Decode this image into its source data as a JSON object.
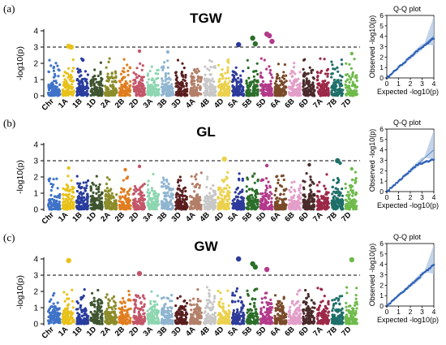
{
  "figure": {
    "panels": [
      {
        "tag": "(a)",
        "trait": "TGW",
        "ylabel": "-log10(p)",
        "qq_title": "Q-Q plot"
      },
      {
        "tag": "(b)",
        "trait": "GL",
        "ylabel": "-log10(p)",
        "qq_title": "Q-Q plot"
      },
      {
        "tag": "(c)",
        "trait": "GW",
        "ylabel": "-log10(p)",
        "qq_title": "Q-Q plot"
      }
    ]
  },
  "chart_data": [
    {
      "type": "scatter",
      "title": "TGW",
      "ylabel": "-log10(p)",
      "ylim": [
        0,
        4
      ],
      "yticks": [
        0,
        1,
        2,
        3,
        4
      ],
      "threshold": 3,
      "chromosomes": [
        "Chr",
        "1A",
        "1B",
        "1D",
        "2A",
        "2B",
        "2D",
        "3A",
        "3B",
        "3D",
        "4A",
        "4B",
        "4D",
        "5A",
        "5B",
        "5D",
        "6A",
        "6B",
        "6D",
        "7A",
        "7B",
        "7D"
      ],
      "chrom_colors": [
        "#3f73c9",
        "#e8c21a",
        "#283d9e",
        "#3e5530",
        "#8c8c2a",
        "#e07d1e",
        "#c4566a",
        "#8dd6b0",
        "#8fb5d0",
        "#5a1e1e",
        "#b37f68",
        "#c8c8c8",
        "#ebd14c",
        "#2d3a9c",
        "#2c6f2a",
        "#b33a8a",
        "#7a4a2a",
        "#e39ec9",
        "#4a2a2a",
        "#9c2848",
        "#1f6f6a",
        "#6fba4b"
      ],
      "top_points": [
        {
          "chr": "1A",
          "value": 3.05
        },
        {
          "chr": "1A",
          "value": 3.0
        },
        {
          "chr": "1B",
          "value": 2.2
        },
        {
          "chr": "2D",
          "value": 2.75
        },
        {
          "chr": "3B",
          "value": 2.7
        },
        {
          "chr": "5A",
          "value": 3.15
        },
        {
          "chr": "5B",
          "value": 3.55
        },
        {
          "chr": "5B",
          "value": 3.2
        },
        {
          "chr": "5D",
          "value": 3.8
        },
        {
          "chr": "5D",
          "value": 3.7
        },
        {
          "chr": "5D",
          "value": 3.35
        },
        {
          "chr": "7D",
          "value": 2.6
        }
      ],
      "qq": {
        "title": "Q-Q plot",
        "xlabel": "Expected -log10(p)",
        "ylabel": "Observed -log10(p)",
        "xlim": [
          0,
          4
        ],
        "ylim": [
          0,
          6
        ],
        "xticks": [
          0,
          1,
          2,
          3,
          4
        ],
        "yticks": [
          0,
          1,
          2,
          3,
          4,
          5,
          6
        ],
        "max_expected": 4.0,
        "max_observed": 3.8
      }
    },
    {
      "type": "scatter",
      "title": "GL",
      "ylabel": "-log10(p)",
      "ylim": [
        0,
        4
      ],
      "yticks": [
        0,
        1,
        2,
        3,
        4
      ],
      "threshold": 3,
      "chromosomes": [
        "Chr",
        "1A",
        "1B",
        "1D",
        "2A",
        "2B",
        "2D",
        "3A",
        "3B",
        "3D",
        "4A",
        "4B",
        "4D",
        "5A",
        "5B",
        "5D",
        "6A",
        "6B",
        "6D",
        "7A",
        "7B",
        "7D"
      ],
      "chrom_colors": [
        "#3f73c9",
        "#e8c21a",
        "#283d9e",
        "#3e5530",
        "#8c8c2a",
        "#e07d1e",
        "#c4566a",
        "#8dd6b0",
        "#8fb5d0",
        "#5a1e1e",
        "#b37f68",
        "#c8c8c8",
        "#ebd14c",
        "#2d3a9c",
        "#2c6f2a",
        "#b33a8a",
        "#7a4a2a",
        "#e39ec9",
        "#4a2a2a",
        "#9c2848",
        "#1f6f6a",
        "#6fba4b"
      ],
      "top_points": [
        {
          "chr": "1A",
          "value": 2.55
        },
        {
          "chr": "2D",
          "value": 2.65
        },
        {
          "chr": "2B",
          "value": 2.45
        },
        {
          "chr": "4D",
          "value": 3.1
        },
        {
          "chr": "5D",
          "value": 2.7
        },
        {
          "chr": "6D",
          "value": 2.75
        },
        {
          "chr": "7B",
          "value": 3.0
        },
        {
          "chr": "7B",
          "value": 2.85
        },
        {
          "chr": "7D",
          "value": 2.5
        }
      ],
      "qq": {
        "title": "Q-Q plot",
        "xlabel": "Expected -log10(p)",
        "ylabel": "Observed -log10(p)",
        "xlim": [
          0,
          4
        ],
        "ylim": [
          0,
          6
        ],
        "xticks": [
          0,
          1,
          2,
          3,
          4
        ],
        "yticks": [
          0,
          1,
          2,
          3,
          4,
          5,
          6
        ],
        "max_expected": 4.0,
        "max_observed": 3.1
      }
    },
    {
      "type": "scatter",
      "title": "GW",
      "ylabel": "-log10(p)",
      "ylim": [
        0,
        4
      ],
      "yticks": [
        0,
        1,
        2,
        3,
        4
      ],
      "threshold": 3,
      "chromosomes": [
        "Chr",
        "1A",
        "1B",
        "1D",
        "2A",
        "2B",
        "2D",
        "3A",
        "3B",
        "3D",
        "4A",
        "4B",
        "4D",
        "5A",
        "5B",
        "5D",
        "6A",
        "6B",
        "6D",
        "7A",
        "7B",
        "7D"
      ],
      "chrom_colors": [
        "#3f73c9",
        "#e8c21a",
        "#283d9e",
        "#3e5530",
        "#8c8c2a",
        "#e07d1e",
        "#c4566a",
        "#8dd6b0",
        "#8fb5d0",
        "#5a1e1e",
        "#b37f68",
        "#c8c8c8",
        "#ebd14c",
        "#2d3a9c",
        "#2c6f2a",
        "#b33a8a",
        "#7a4a2a",
        "#e39ec9",
        "#4a2a2a",
        "#9c2848",
        "#1f6f6a",
        "#6fba4b"
      ],
      "top_points": [
        {
          "chr": "1A",
          "value": 3.9
        },
        {
          "chr": "2D",
          "value": 3.1
        },
        {
          "chr": "5A",
          "value": 4.0
        },
        {
          "chr": "5B",
          "value": 3.7
        },
        {
          "chr": "5B",
          "value": 3.5
        },
        {
          "chr": "5D",
          "value": 3.35
        },
        {
          "chr": "7D",
          "value": 3.95
        }
      ],
      "qq": {
        "title": "Q-Q plot",
        "xlabel": "Expected -log10(p)",
        "ylabel": "Observed -log10(p)",
        "xlim": [
          0,
          4
        ],
        "ylim": [
          0,
          6
        ],
        "xticks": [
          0,
          1,
          2,
          3,
          4
        ],
        "yticks": [
          0,
          1,
          2,
          3,
          4,
          5,
          6
        ],
        "max_expected": 4.0,
        "max_observed": 4.0
      }
    }
  ]
}
